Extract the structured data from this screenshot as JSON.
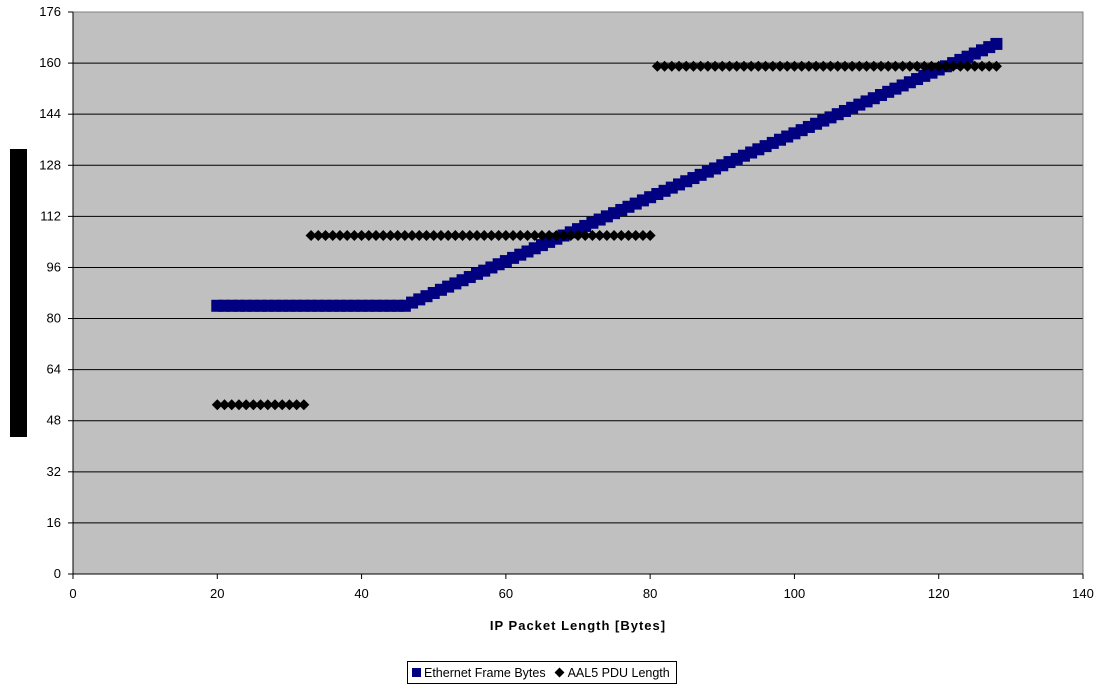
{
  "chart_data": {
    "type": "scatter",
    "title": "",
    "xlabel": "IP Packet Length [Bytes]",
    "ylabel": "",
    "xlim": [
      0,
      140
    ],
    "ylim": [
      0,
      176
    ],
    "xticks": [
      0,
      20,
      40,
      60,
      80,
      100,
      120,
      140
    ],
    "yticks": [
      0,
      16,
      32,
      48,
      64,
      80,
      96,
      112,
      128,
      144,
      160,
      176
    ],
    "grid": "horizontal",
    "plot_background": "#c0c0c0",
    "legend_position": "bottom",
    "series": [
      {
        "name": "Ethernet Frame Bytes",
        "color": "#000080",
        "marker": "square",
        "x_start": 20,
        "x_end": 128,
        "x_step": 1,
        "rule": "max(84, x + 38)"
      },
      {
        "name": "AAL5 PDU Length",
        "color": "#000000",
        "marker": "diamond",
        "segments": [
          {
            "x_start": 20,
            "x_end": 32,
            "y": 53
          },
          {
            "x_start": 33,
            "x_end": 80,
            "y": 106
          },
          {
            "x_start": 81,
            "x_end": 128,
            "y": 159
          }
        ]
      }
    ]
  }
}
